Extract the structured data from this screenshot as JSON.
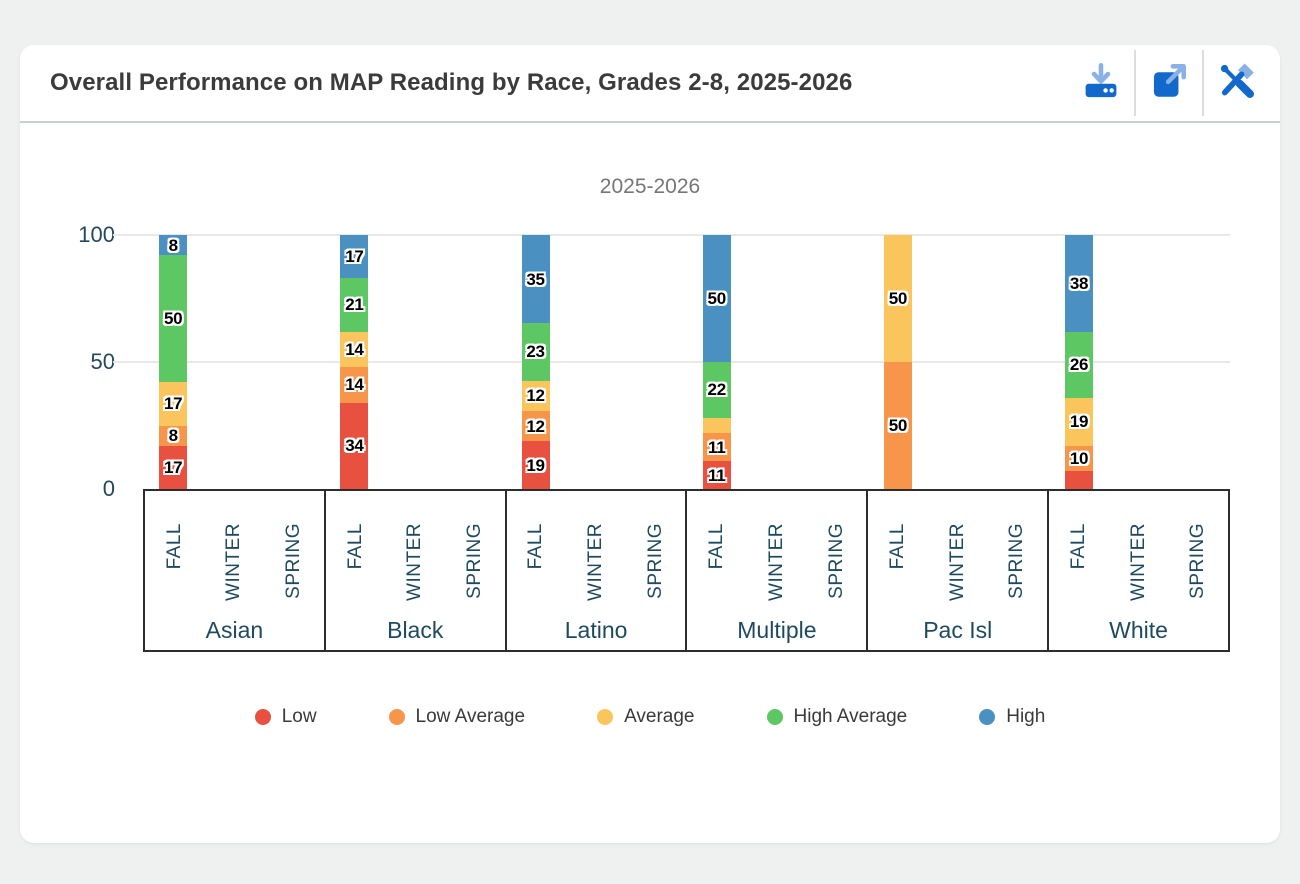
{
  "header": {
    "title": "Overall Performance on MAP Reading by Race, Grades 2-8, 2025-2026",
    "toolbar": [
      {
        "icon": "download-icon"
      },
      {
        "icon": "open-in-new-icon"
      },
      {
        "icon": "tools-icon"
      }
    ]
  },
  "colors": {
    "icon_primary": "#1268cb",
    "icon_accent": "#8ab1e5",
    "axis_text": "#1e4a5f",
    "grid": "#e7e8e8"
  },
  "chart_data": {
    "type": "bar",
    "stacked": true,
    "title": "2025-2026",
    "categories": [
      "Asian",
      "Black",
      "Latino",
      "Multiple",
      "Pac Isl",
      "White"
    ],
    "seasons": [
      "FALL",
      "WINTER",
      "SPRING"
    ],
    "data_season": "FALL",
    "ylim": [
      0,
      100
    ],
    "yticks": [
      "0",
      "50",
      "100"
    ],
    "grid": true,
    "legend_position": "bottom",
    "series": [
      {
        "name": "Low",
        "color": "#e85140",
        "values": [
          17,
          34,
          19,
          11,
          0,
          7
        ],
        "labels": [
          "17",
          "34",
          "19",
          "11",
          "",
          ""
        ]
      },
      {
        "name": "Low Average",
        "color": "#f7964a",
        "values": [
          8,
          14,
          12,
          11,
          50,
          10
        ],
        "labels": [
          "8",
          "14",
          "12",
          "11",
          "50",
          "10"
        ]
      },
      {
        "name": "Average",
        "color": "#fbc55e",
        "values": [
          17,
          14,
          12,
          6,
          50,
          19
        ],
        "labels": [
          "17",
          "14",
          "12",
          "",
          "50",
          "19"
        ]
      },
      {
        "name": "High Average",
        "color": "#5dc863",
        "values": [
          50,
          21,
          23,
          22,
          0,
          26
        ],
        "labels": [
          "50",
          "21",
          "23",
          "22",
          "",
          "26"
        ]
      },
      {
        "name": "High",
        "color": "#4a91c1",
        "values": [
          8,
          17,
          35,
          50,
          0,
          38
        ],
        "labels": [
          "8",
          "17",
          "35",
          "50",
          "",
          "38"
        ]
      }
    ]
  }
}
